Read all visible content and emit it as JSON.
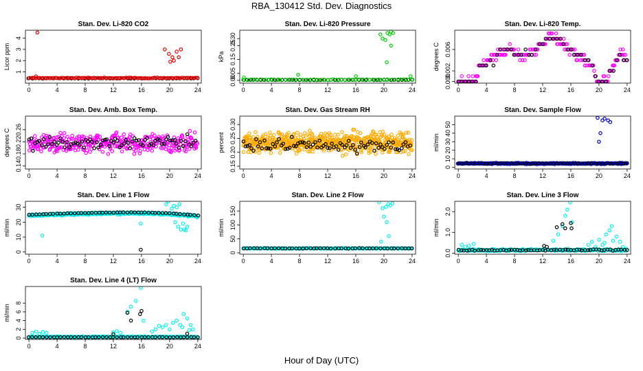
{
  "page": {
    "title": "RBA_130412  Std. Dev. Diagnostics",
    "xlabel": "Hour of Day (UTC)"
  },
  "chart_data": [
    {
      "type": "scatter",
      "title": "Stan. Dev. Li-820 CO2",
      "ylabel": "Licor ppm",
      "xlim": [
        -0.5,
        24.5
      ],
      "ylim": [
        0,
        4.7
      ],
      "yticks": [
        1,
        2,
        3,
        4
      ],
      "xticks": [
        0,
        4,
        8,
        12,
        16,
        20,
        24
      ],
      "series": [
        {
          "color": "#000000",
          "base": 0.42,
          "jitter": 0.03,
          "step": 0.5,
          "points": []
        },
        {
          "color": "#e00000",
          "base": 0.46,
          "jitter": 0.05,
          "step": 0.25,
          "points": [
            [
              1.2,
              4.5
            ],
            [
              19.3,
              3.0
            ],
            [
              19.9,
              2.6
            ],
            [
              20.4,
              2.3
            ],
            [
              20.6,
              2.0
            ],
            [
              21.0,
              2.8
            ],
            [
              21.3,
              2.3
            ],
            [
              21.6,
              3.0
            ],
            [
              20.1,
              1.9
            ],
            [
              1.0,
              0.6
            ]
          ]
        }
      ]
    },
    {
      "type": "scatter",
      "title": "Stan. Dev. Li-820 Pressure",
      "ylabel": "kPa",
      "xlim": [
        -0.5,
        24.5
      ],
      "ylim": [
        -0.02,
        0.36
      ],
      "yticks": [
        0.0,
        0.05,
        0.15,
        0.25,
        0.3
      ],
      "yticklabels": [
        "0.00",
        "0.05",
        "0.15",
        "0.25",
        "0.30"
      ],
      "xticks": [
        0,
        4,
        8,
        12,
        16,
        20,
        24
      ],
      "series": [
        {
          "color": "#000000",
          "base": 0.003,
          "jitter": 0.002,
          "step": 0.5,
          "points": []
        },
        {
          "color": "#00cc00",
          "base": 0.005,
          "jitter": 0.004,
          "step": 0.4,
          "points": [
            [
              0.1,
              0.02
            ],
            [
              7.8,
              0.04
            ],
            [
              16.0,
              0.03
            ],
            [
              19.5,
              0.33
            ],
            [
              19.8,
              0.3
            ],
            [
              20.2,
              0.29
            ],
            [
              20.5,
              0.34
            ],
            [
              20.8,
              0.33
            ],
            [
              21.0,
              0.35
            ],
            [
              21.3,
              0.34
            ],
            [
              21.0,
              0.25
            ],
            [
              20.4,
              0.13
            ],
            [
              23.8,
              0.03
            ]
          ]
        }
      ]
    },
    {
      "type": "scatter",
      "title": "Stan. Dev. Li-820 Temp.",
      "ylabel": "degrees C",
      "xlim": [
        -0.5,
        24.5
      ],
      "ylim": [
        -0.0003,
        0.0096
      ],
      "yticks": [
        0.0,
        0.002,
        0.006
      ],
      "yticklabels": [
        "0.000",
        "0.002",
        "0.006"
      ],
      "xticks": [
        0,
        4,
        8,
        12,
        16,
        20,
        24
      ],
      "profile": [
        [
          0,
          0.0
        ],
        [
          2.5,
          0.0
        ],
        [
          3.0,
          0.003
        ],
        [
          4.5,
          0.004
        ],
        [
          7,
          0.006
        ],
        [
          9,
          0.005
        ],
        [
          11,
          0.006
        ],
        [
          13.2,
          0.0085
        ],
        [
          15,
          0.007
        ],
        [
          17,
          0.005
        ],
        [
          19,
          0.003
        ],
        [
          19.8,
          0.0
        ],
        [
          21.3,
          0.0
        ],
        [
          21.6,
          0.002
        ],
        [
          23,
          0.005
        ],
        [
          24,
          0.004
        ]
      ],
      "series": [
        {
          "color": "#ff00ff",
          "base": 0.0,
          "jitter": 0.0012,
          "step": 0.12,
          "points": []
        },
        {
          "color": "#000000",
          "base": 0.0,
          "jitter": 0.0012,
          "step": 0.5,
          "points": []
        }
      ]
    },
    {
      "type": "scatter",
      "title": "Stan. Dev. Amb. Box Temp.",
      "ylabel": "degrees C",
      "xlim": [
        -0.5,
        24.5
      ],
      "ylim": [
        0.13,
        0.305
      ],
      "yticks": [
        0.14,
        0.18,
        0.22,
        0.26
      ],
      "yticklabels": [
        "0.14",
        "0.18",
        "0.22",
        "0.26"
      ],
      "xticks": [
        0,
        4,
        8,
        12,
        16,
        20,
        24
      ],
      "series": [
        {
          "color": "#ff00ff",
          "base": 0.215,
          "jitter": 0.045,
          "step": 0.07,
          "points": []
        },
        {
          "color": "#000000",
          "base": 0.215,
          "jitter": 0.035,
          "step": 0.3,
          "points": []
        }
      ]
    },
    {
      "type": "scatter",
      "title": "Stan. Dev. Gas Stream RH",
      "ylabel": "percent",
      "xlim": [
        -0.5,
        24.5
      ],
      "ylim": [
        0.14,
        0.33
      ],
      "yticks": [
        0.15,
        0.2,
        0.25,
        0.3
      ],
      "yticklabels": [
        "0.15",
        "0.20",
        "0.25",
        "0.30"
      ],
      "xticks": [
        0,
        4,
        8,
        12,
        16,
        20,
        24
      ],
      "series": [
        {
          "color": "#ffaa00",
          "base": 0.235,
          "jitter": 0.05,
          "step": 0.04,
          "points": []
        },
        {
          "color": "#000000",
          "base": 0.225,
          "jitter": 0.035,
          "step": 0.3,
          "points": []
        }
      ]
    },
    {
      "type": "scatter",
      "title": "Stan. Dev. Sample Flow",
      "ylabel": "ml/min",
      "xlim": [
        -0.5,
        24.5
      ],
      "ylim": [
        -2,
        60
      ],
      "yticks": [
        0,
        10,
        20,
        30,
        40,
        50
      ],
      "xticks": [
        0,
        4,
        8,
        12,
        16,
        20,
        24
      ],
      "series": [
        {
          "color": "#0000cc",
          "base": 4.5,
          "jitter": 1.0,
          "step": 0.08,
          "points": [
            [
              19.8,
              58
            ],
            [
              20.5,
              55
            ],
            [
              20.8,
              57
            ],
            [
              21.3,
              55
            ],
            [
              20.2,
              40
            ],
            [
              20.0,
              30
            ],
            [
              21.6,
              53
            ]
          ]
        },
        {
          "color": "#000000",
          "base": 4.5,
          "jitter": 0.6,
          "step": 0.5,
          "points": []
        }
      ]
    },
    {
      "type": "scatter",
      "title": "Stan. Dev. Line 1 Flow",
      "ylabel": "ml/min",
      "xlim": [
        -0.5,
        24.5
      ],
      "ylim": [
        -1.5,
        34
      ],
      "yticks": [
        0,
        10,
        20,
        30
      ],
      "xticks": [
        0,
        4,
        8,
        12,
        16,
        20,
        24
      ],
      "profile": [
        [
          0,
          24.5
        ],
        [
          6,
          25.5
        ],
        [
          12,
          26
        ],
        [
          16,
          26
        ],
        [
          20,
          25.5
        ],
        [
          24,
          24
        ]
      ],
      "series": [
        {
          "color": "#00eeee",
          "base": 0,
          "jitter": 1.0,
          "step": 0.05,
          "points": [
            [
              1.9,
              11
            ],
            [
              15.9,
              19
            ],
            [
              19.5,
              32
            ],
            [
              20.3,
              29
            ],
            [
              20.6,
              31
            ],
            [
              21.0,
              30
            ],
            [
              21.4,
              32
            ],
            [
              20.8,
              20
            ],
            [
              21.2,
              17
            ],
            [
              21.6,
              15
            ],
            [
              22.1,
              15
            ],
            [
              22.5,
              17
            ],
            [
              21.9,
              19
            ],
            [
              19.8,
              34
            ],
            [
              22.3,
              14.5
            ]
          ]
        },
        {
          "color": "#000000",
          "base": 0.5,
          "jitter": 0.15,
          "step": 0.5,
          "points": [
            [
              15.9,
              1.5
            ]
          ]
        }
      ]
    },
    {
      "type": "scatter",
      "title": "Stan. Dev. Line 2 Flow",
      "ylabel": "ml/min",
      "xlim": [
        -0.5,
        24.5
      ],
      "ylim": [
        -5,
        185
      ],
      "yticks": [
        0,
        50,
        100,
        150
      ],
      "xticks": [
        0,
        4,
        8,
        12,
        16,
        20,
        24
      ],
      "series": [
        {
          "color": "#00eeee",
          "base": 16,
          "jitter": 1.5,
          "step": 0.1,
          "points": [
            [
              19.3,
              182
            ],
            [
              19.8,
              160
            ],
            [
              20.3,
              165
            ],
            [
              20.6,
              175
            ],
            [
              20.9,
              170
            ],
            [
              21.2,
              178
            ],
            [
              20.0,
              130
            ],
            [
              20.4,
              110
            ],
            [
              19.6,
              40
            ],
            [
              20.7,
              60
            ]
          ]
        },
        {
          "color": "#000000",
          "base": 16,
          "jitter": 1.2,
          "step": 0.5,
          "points": []
        }
      ]
    },
    {
      "type": "scatter",
      "title": "Stan. Dev. Line 3 Flow",
      "ylabel": "ml/min",
      "xlim": [
        -0.5,
        24.5
      ],
      "ylim": [
        -0.05,
        2.5
      ],
      "yticks": [
        0.0,
        1.0,
        2.0
      ],
      "yticklabels": [
        "0.0",
        "1.0",
        "2.0"
      ],
      "xticks": [
        0,
        4,
        8,
        12,
        16,
        20,
        24
      ],
      "series": [
        {
          "color": "#00eeee",
          "base": 0.15,
          "jitter": 0.08,
          "step": 0.12,
          "points": [
            [
              0.5,
              0.4
            ],
            [
              1.0,
              0.3
            ],
            [
              1.5,
              0.35
            ],
            [
              2.2,
              0.45
            ],
            [
              13.5,
              0.6
            ],
            [
              14.2,
              0.9
            ],
            [
              14.8,
              1.3
            ],
            [
              15.2,
              1.8
            ],
            [
              15.5,
              2.1
            ],
            [
              15.9,
              2.45
            ],
            [
              16.2,
              1.5
            ],
            [
              18.5,
              0.4
            ],
            [
              19.0,
              0.55
            ],
            [
              19.5,
              0.3
            ],
            [
              20.0,
              0.65
            ],
            [
              20.5,
              0.4
            ],
            [
              21.0,
              0.9
            ],
            [
              21.5,
              1.1
            ],
            [
              22.0,
              0.6
            ],
            [
              22.5,
              0.8
            ],
            [
              23.0,
              0.55
            ],
            [
              21.8,
              1.3
            ],
            [
              20.8,
              0.5
            ],
            [
              23.4,
              0.3
            ]
          ]
        },
        {
          "color": "#000000",
          "base": 0.15,
          "jitter": 0.04,
          "step": 0.4,
          "points": [
            [
              14.0,
              1.25
            ],
            [
              14.8,
              1.4
            ],
            [
              15.2,
              1.2
            ],
            [
              16.0,
              1.45
            ],
            [
              16.1,
              1.2
            ],
            [
              12.2,
              0.35
            ],
            [
              12.6,
              0.3
            ]
          ]
        }
      ]
    },
    {
      "type": "scatter",
      "title": "Stan. Dev. Line 4 (LT) Flow",
      "ylabel": "ml/min",
      "xlim": [
        -0.5,
        24.5
      ],
      "ylim": [
        -0.3,
        11.8
      ],
      "yticks": [
        0,
        2,
        4,
        6,
        8
      ],
      "xticks": [
        0,
        4,
        8,
        12,
        16,
        20,
        24
      ],
      "series": [
        {
          "color": "#00eeee",
          "base": 0.3,
          "jitter": 0.15,
          "step": 0.12,
          "points": [
            [
              0.5,
              1.2
            ],
            [
              1.0,
              1.5
            ],
            [
              1.5,
              1.0
            ],
            [
              2.0,
              1.4
            ],
            [
              2.5,
              1.2
            ],
            [
              12.0,
              1.3
            ],
            [
              12.5,
              1.6
            ],
            [
              13.0,
              1.2
            ],
            [
              14.0,
              6.0
            ],
            [
              14.5,
              7.2
            ],
            [
              15.2,
              8.5
            ],
            [
              15.9,
              11.5
            ],
            [
              16.3,
              4.0
            ],
            [
              17.5,
              1.5
            ],
            [
              18.0,
              2.0
            ],
            [
              18.5,
              2.8
            ],
            [
              19.0,
              2.5
            ],
            [
              19.5,
              3.0
            ],
            [
              20.0,
              2.0
            ],
            [
              20.5,
              3.5
            ],
            [
              21.0,
              4.0
            ],
            [
              21.5,
              3.0
            ],
            [
              22.0,
              5.5
            ],
            [
              22.5,
              4.5
            ],
            [
              23.0,
              3.0
            ],
            [
              23.3,
              2.0
            ],
            [
              21.8,
              2.5
            ],
            [
              22.8,
              1.8
            ]
          ]
        },
        {
          "color": "#000000",
          "base": 0.2,
          "jitter": 0.04,
          "step": 0.5,
          "points": [
            [
              14.0,
              5.8
            ],
            [
              14.5,
              4.0
            ],
            [
              15.8,
              5.5
            ],
            [
              16.0,
              6.2
            ],
            [
              12.0,
              0.9
            ],
            [
              22.5,
              1.0
            ]
          ]
        }
      ]
    }
  ]
}
